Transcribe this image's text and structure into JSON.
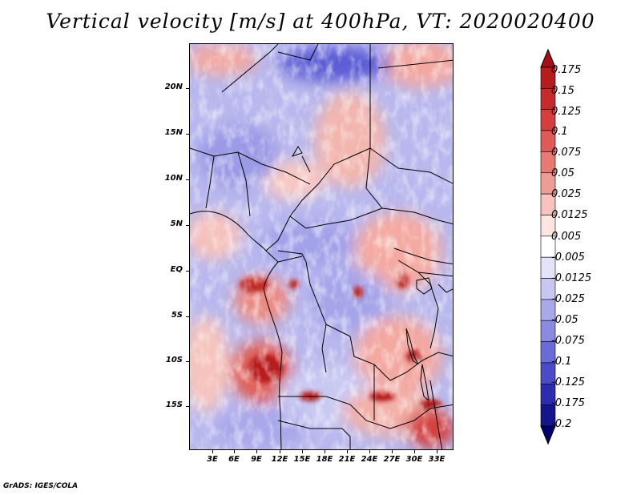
{
  "title": "Vertical velocity [m/s] at 400hPa, VT: 2020020400",
  "footer": "GrADS: IGES/COLA",
  "map": {
    "lat_labels": [
      "20N",
      "15N",
      "10N",
      "5N",
      "EQ",
      "5S",
      "10S",
      "15S"
    ],
    "lon_labels": [
      "3E",
      "6E",
      "9E",
      "12E",
      "15E",
      "18E",
      "21E",
      "24E",
      "27E",
      "30E",
      "33E"
    ]
  },
  "colorbar": {
    "labels": [
      "0.175",
      "0.15",
      "0.125",
      "0.1",
      "0.075",
      "0.05",
      "0.025",
      "0.0125",
      "0.005",
      "-0.005",
      "-0.0125",
      "-0.025",
      "-0.05",
      "-0.075",
      "-0.1",
      "-0.125",
      "-0.175",
      "-0.2"
    ],
    "colors": [
      "#a50f15",
      "#b51c1c",
      "#c62a2a",
      "#d63d3d",
      "#e05a57",
      "#e87a74",
      "#f09c96",
      "#f8c2bd",
      "#fde6e2",
      "#ffffff",
      "#e4e4f8",
      "#c7c7f2",
      "#a8a8ea",
      "#8a8ae2",
      "#6b6bd8",
      "#4b4bc8",
      "#2c2cb0",
      "#14148c",
      "#000070"
    ]
  }
}
